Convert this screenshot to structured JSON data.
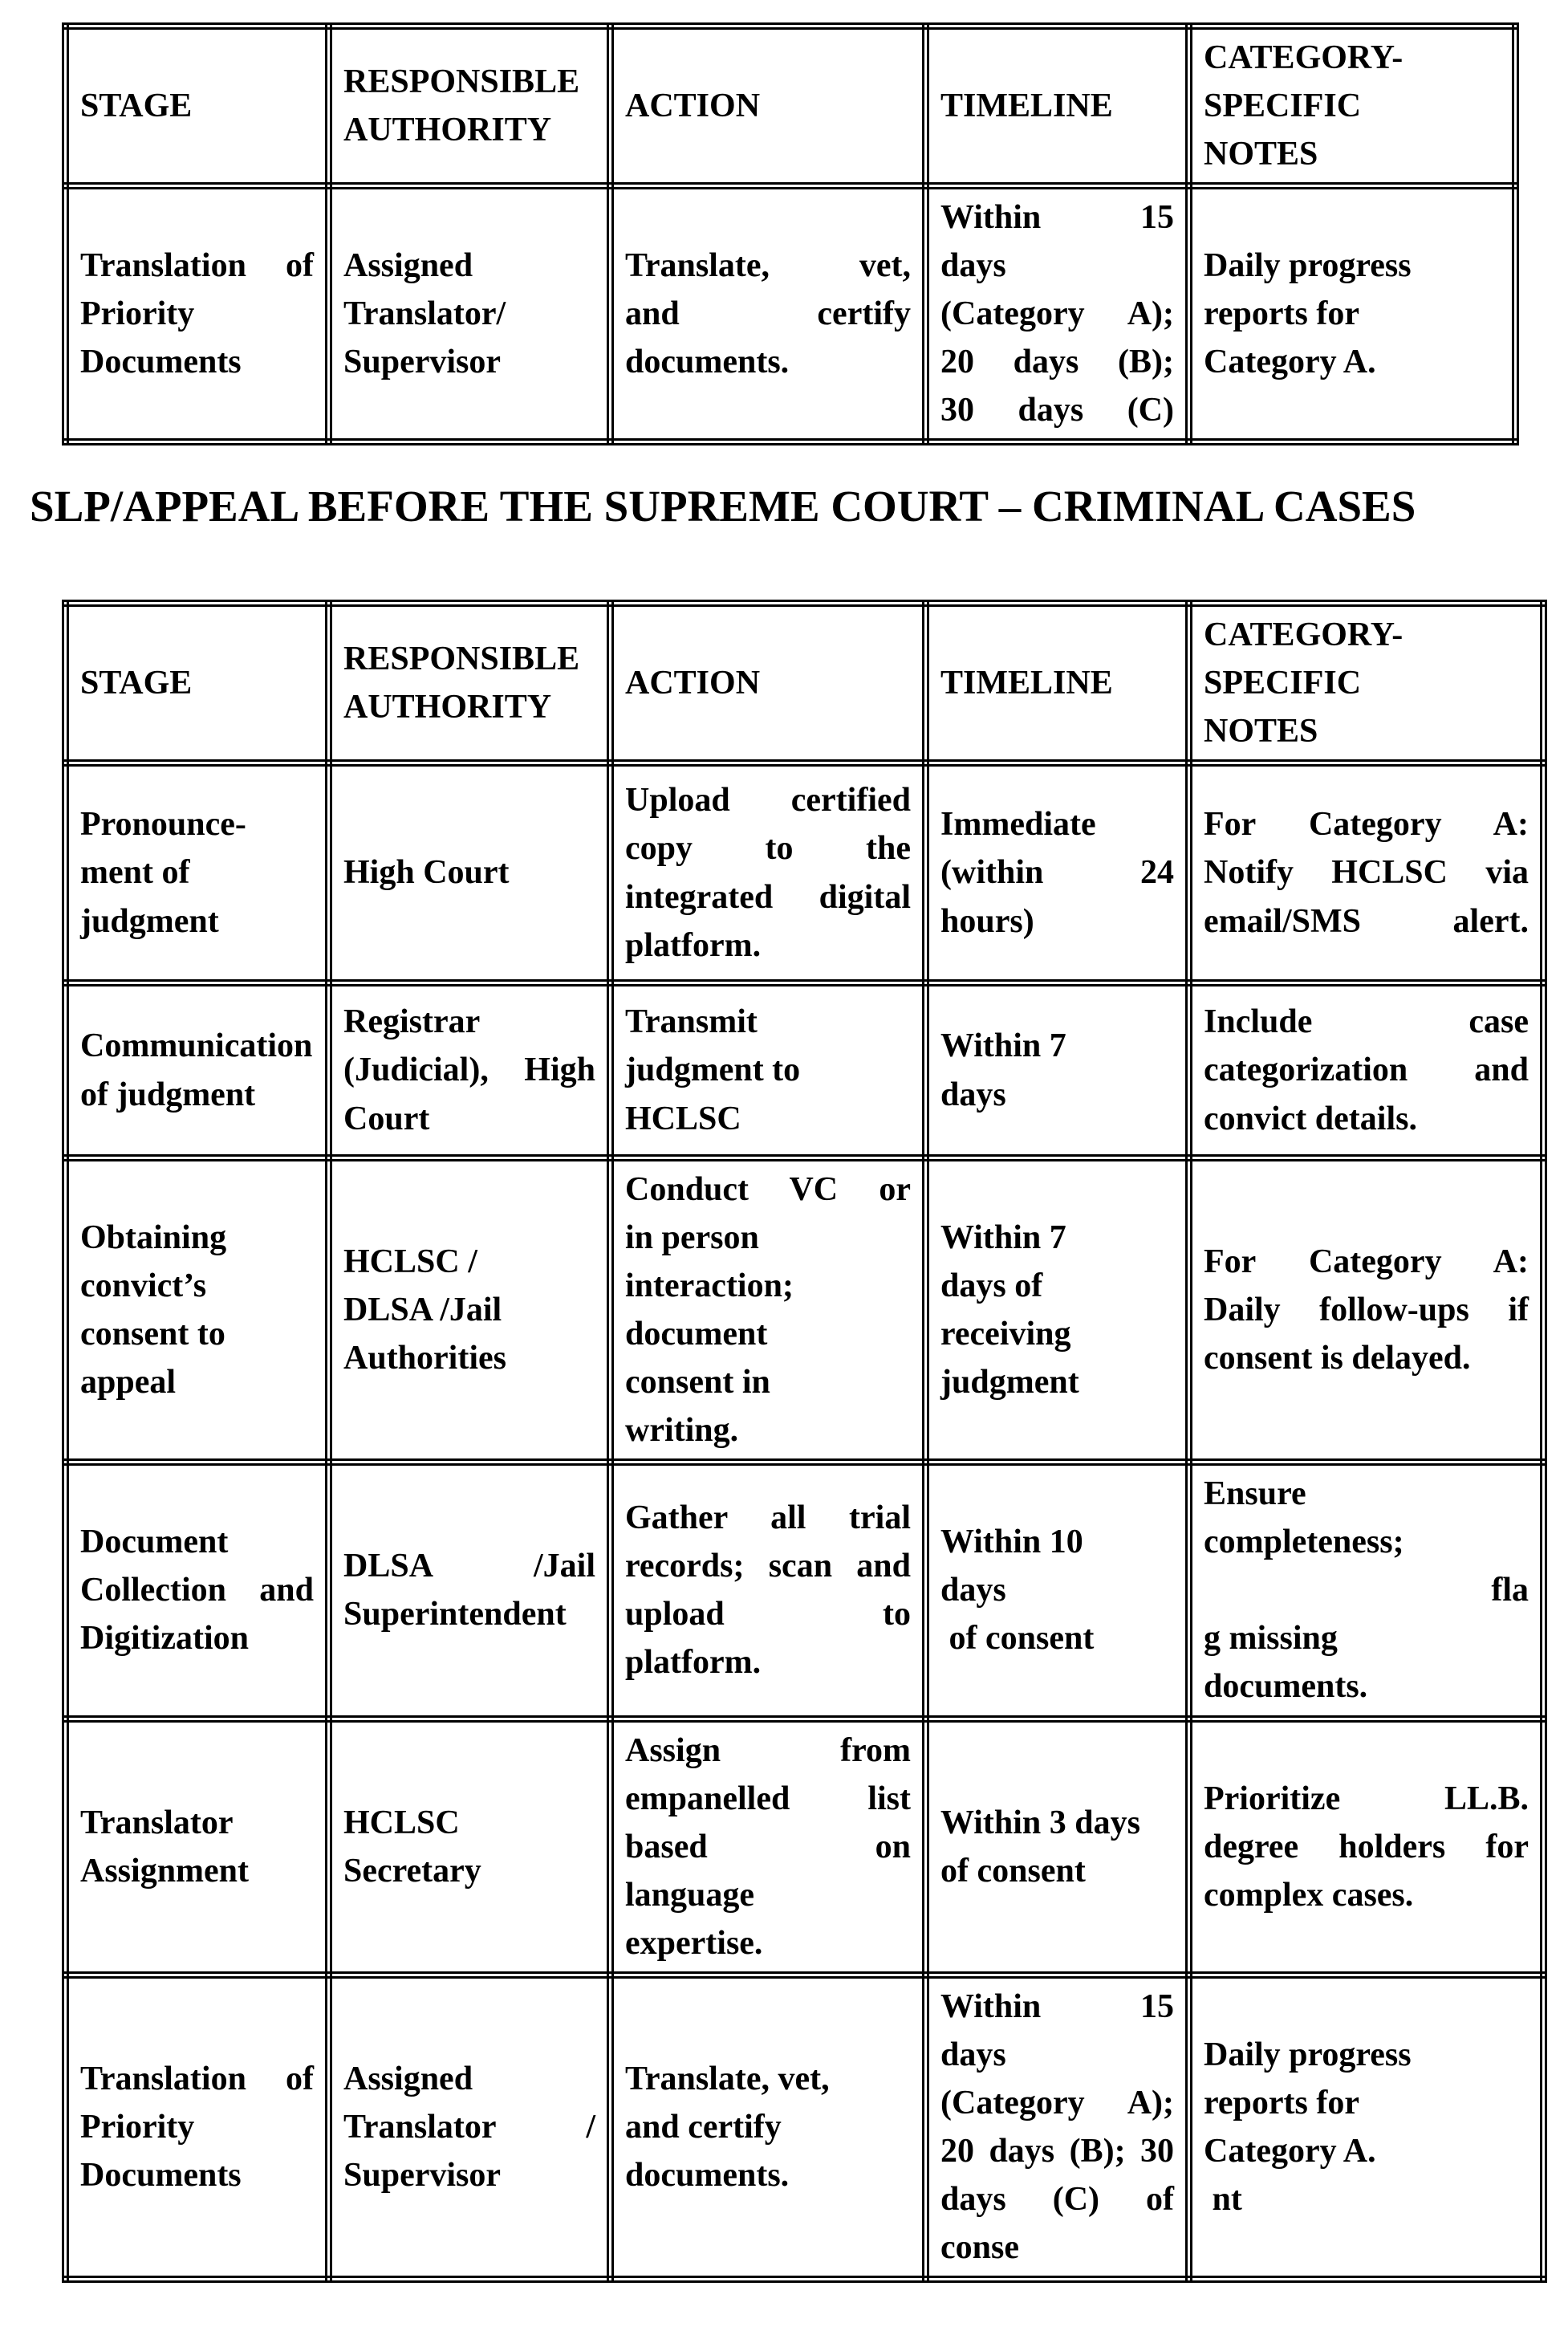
{
  "page": {
    "heading": "SLP/APPEAL BEFORE THE SUPREME COURT – CRIMINAL CASES"
  },
  "columns": [
    "STAGE",
    "RESPONSIBLE\nAUTHORITY",
    "ACTION",
    "TIMELINE",
    "CATEGORY-\nSPECIFIC\nNOTES"
  ],
  "table1": {
    "rows": [
      {
        "stage": "Translation of\nPriority\nDocuments",
        "authority": "Assigned\nTranslator/\nSupervisor",
        "action": "Translate, vet,\nand certify\ndocuments.",
        "timeline": "Within 15\ndays\n(Category A);\n20 days (B);\n30 days (C)",
        "notes": "Daily progress\nreports for\nCategory A."
      }
    ]
  },
  "table2": {
    "rows": [
      {
        "stage": "Pronounce-\nment of\njudgment",
        "authority": "High Court",
        "action": "Upload certified\ncopy to the\nintegrated digital\nplatform.",
        "timeline": "Immediate\n(within 24\nhours)",
        "notes": "For Category A:\nNotify HCLSC via\nemail/SMS alert."
      },
      {
        "stage": "Communication\nof judgment",
        "authority": "Registrar\n(Judicial), High\nCourt",
        "action": "Transmit\njudgment to\nHCLSC",
        "timeline": "Within 7\ndays",
        "notes_j": "Include case\ncategorization and",
        "notes_l": "convict details."
      },
      {
        "stage": "Obtaining\nconvict’s\nconsent to\nappeal",
        "authority": "HCLSC /\nDLSA /Jail\nAuthorities",
        "action_j": "Conduct VC or",
        "action_l": "in person\ninteraction;\ndocument\nconsent in\nwriting.",
        "timeline": "Within 7\ndays of\nreceiving\njudgment",
        "notes_j": "For Category A:\nDaily follow-ups if",
        "notes_l": "consent is delayed."
      },
      {
        "stage": "Document\nCollection and\nDigitization",
        "authority": "DLSA /Jail\nSuperintendent",
        "action": "Gather all trial\nrecords; scan and\nupload to\nplatform.",
        "timeline": "Within 10\ndays\n of consent",
        "notes_a": "Ensure\ncompleteness;",
        "notes_b": "fla",
        "notes_c": "g missing\ndocuments."
      },
      {
        "stage": "Translator\nAssignment",
        "authority": "HCLSC\nSecretary",
        "action": "Assign from\nempanelled list\nbased on\nlanguage\nexpertise.",
        "timeline": "Within 3 days\nof consent",
        "notes_j": "Prioritize LL.B.\ndegree holders for",
        "notes_l": "complex cases."
      },
      {
        "stage": "Translation of\nPriority\nDocuments",
        "authority": "Assigned\nTranslator /\nSupervisor",
        "action": "Translate, vet,\nand certify\ndocuments.",
        "timeline": "Within 15\ndays\n(Category A);\n20 days (B); 30\ndays (C) of\nconse",
        "notes_main": "Daily progress\nreports for\nCategory A.",
        "notes_tail": " nt"
      }
    ]
  }
}
